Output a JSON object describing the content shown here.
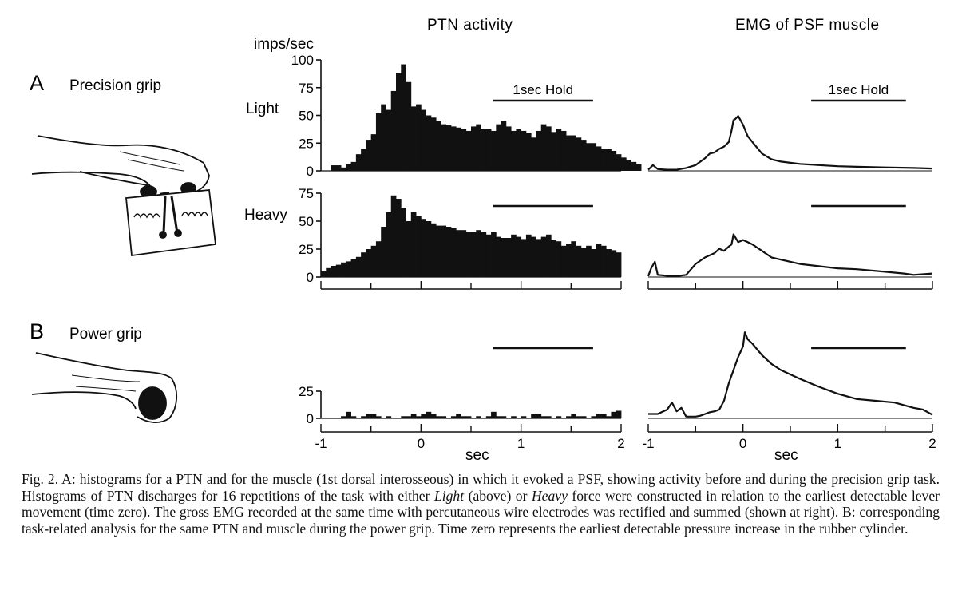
{
  "titles": {
    "left": "PTN activity",
    "right": "EMG of PSF muscle"
  },
  "y_unit": "imps/sec",
  "panels": {
    "a": {
      "letter": "A",
      "label": "Precision grip"
    },
    "b": {
      "letter": "B",
      "label": "Power grip"
    }
  },
  "row_labels": {
    "light": "Light",
    "heavy": "Heavy"
  },
  "hold_label": "1sec Hold",
  "x_label": "sec",
  "chart_data": [
    {
      "type": "bar",
      "panel": "A",
      "condition": "Light",
      "title": "PTN activity",
      "ylabel": "imps/sec",
      "xlabel": "sec",
      "xlim": [
        -1,
        2
      ],
      "ylim": [
        0,
        100
      ],
      "yticks": [
        0,
        25,
        50,
        75,
        100
      ],
      "xticks": [
        -1,
        0,
        1,
        2
      ],
      "hold": {
        "label": "1sec Hold",
        "start": 0.72,
        "end": 1.72
      },
      "bin_width": 0.05,
      "x_start": -0.9,
      "values": [
        5,
        5,
        3,
        6,
        8,
        15,
        20,
        28,
        33,
        52,
        60,
        55,
        72,
        88,
        96,
        80,
        58,
        60,
        55,
        50,
        48,
        45,
        42,
        41,
        40,
        39,
        38,
        36,
        40,
        42,
        38,
        38,
        36,
        42,
        45,
        40,
        36,
        38,
        36,
        34,
        30,
        36,
        42,
        40,
        35,
        38,
        36,
        32,
        32,
        30,
        28,
        25,
        25,
        22,
        20,
        20,
        18,
        15,
        12,
        10,
        8,
        6
      ]
    },
    {
      "type": "bar",
      "panel": "A",
      "condition": "Heavy",
      "ylabel": "imps/sec",
      "xlabel": "sec",
      "xlim": [
        -1,
        2
      ],
      "ylim": [
        0,
        75
      ],
      "yticks": [
        0,
        25,
        50,
        75
      ],
      "xticks": [
        -1,
        0,
        1,
        2
      ],
      "hold": {
        "start": 0.72,
        "end": 1.72
      },
      "bin_width": 0.05,
      "x_start": -1.0,
      "values": [
        5,
        8,
        10,
        11,
        13,
        14,
        16,
        18,
        22,
        25,
        28,
        32,
        45,
        58,
        73,
        70,
        62,
        50,
        58,
        55,
        52,
        50,
        48,
        46,
        46,
        45,
        44,
        42,
        42,
        40,
        40,
        42,
        40,
        38,
        40,
        36,
        35,
        35,
        38,
        36,
        34,
        38,
        36,
        34,
        36,
        38,
        33,
        32,
        28,
        30,
        32,
        28,
        26,
        28,
        25,
        30,
        28,
        25,
        24,
        22
      ]
    },
    {
      "type": "bar",
      "panel": "B",
      "condition": "Power grip",
      "ylabel": "imps/sec",
      "xlabel": "sec",
      "xlim": [
        -1,
        2
      ],
      "ylim": [
        0,
        25
      ],
      "yticks": [
        0,
        25
      ],
      "xticks": [
        -1,
        0,
        1,
        2
      ],
      "hold": {
        "start": 0.72,
        "end": 1.72
      },
      "bin_width": 0.05,
      "x_start": -1.0,
      "values": [
        0,
        0,
        0,
        0,
        2,
        6,
        2,
        0,
        2,
        4,
        4,
        2,
        0,
        2,
        0,
        0,
        2,
        2,
        4,
        2,
        4,
        6,
        4,
        2,
        2,
        0,
        2,
        4,
        2,
        2,
        0,
        2,
        0,
        2,
        6,
        2,
        2,
        0,
        2,
        0,
        2,
        0,
        4,
        4,
        2,
        2,
        0,
        2,
        0,
        2,
        4,
        2,
        2,
        0,
        2,
        4,
        4,
        2,
        6,
        7
      ]
    },
    {
      "type": "line",
      "panel": "A",
      "condition": "Light",
      "title": "EMG of PSF muscle",
      "xlabel": "sec",
      "xlim": [
        -1,
        2
      ],
      "xticks": [
        -1,
        0,
        1,
        2
      ],
      "hold": {
        "label": "1sec Hold",
        "start": 0.72,
        "end": 1.72
      },
      "peak_normalized": true,
      "x": [
        -1.0,
        -0.95,
        -0.9,
        -0.8,
        -0.7,
        -0.6,
        -0.5,
        -0.4,
        -0.35,
        -0.3,
        -0.25,
        -0.2,
        -0.15,
        -0.12,
        -0.1,
        -0.08,
        -0.05,
        0.0,
        0.05,
        0.1,
        0.2,
        0.3,
        0.4,
        0.5,
        0.6,
        0.8,
        1.0,
        1.2,
        1.5,
        1.8,
        2.0
      ],
      "values": [
        0.02,
        0.1,
        0.03,
        0.02,
        0.02,
        0.05,
        0.1,
        0.22,
        0.3,
        0.32,
        0.38,
        0.42,
        0.5,
        0.7,
        0.88,
        0.9,
        0.95,
        0.8,
        0.6,
        0.5,
        0.3,
        0.2,
        0.16,
        0.14,
        0.12,
        0.1,
        0.08,
        0.07,
        0.06,
        0.05,
        0.04
      ]
    },
    {
      "type": "line",
      "panel": "A",
      "condition": "Heavy",
      "xlabel": "sec",
      "xlim": [
        -1,
        2
      ],
      "xticks": [
        -1,
        0,
        1,
        2
      ],
      "hold": {
        "start": 0.72,
        "end": 1.72
      },
      "peak_normalized": true,
      "x": [
        -1.0,
        -0.97,
        -0.93,
        -0.9,
        -0.8,
        -0.7,
        -0.6,
        -0.5,
        -0.4,
        -0.3,
        -0.25,
        -0.2,
        -0.15,
        -0.12,
        -0.1,
        -0.05,
        0.0,
        0.05,
        0.1,
        0.2,
        0.3,
        0.4,
        0.6,
        0.8,
        1.0,
        1.2,
        1.5,
        1.7,
        1.8,
        2.0
      ],
      "values": [
        0.02,
        0.2,
        0.35,
        0.05,
        0.03,
        0.02,
        0.05,
        0.3,
        0.45,
        0.55,
        0.65,
        0.6,
        0.7,
        0.75,
        0.98,
        0.8,
        0.85,
        0.8,
        0.75,
        0.6,
        0.45,
        0.4,
        0.3,
        0.25,
        0.2,
        0.18,
        0.12,
        0.08,
        0.05,
        0.08
      ]
    },
    {
      "type": "line",
      "panel": "B",
      "condition": "Power grip",
      "xlabel": "sec",
      "xlim": [
        -1,
        2
      ],
      "xticks": [
        -1,
        0,
        1,
        2
      ],
      "hold": {
        "start": 0.72,
        "end": 1.72
      },
      "peak_normalized": true,
      "x": [
        -1.0,
        -0.9,
        -0.8,
        -0.75,
        -0.7,
        -0.65,
        -0.6,
        -0.5,
        -0.45,
        -0.4,
        -0.35,
        -0.3,
        -0.25,
        -0.2,
        -0.15,
        -0.1,
        -0.05,
        0.0,
        0.02,
        0.05,
        0.1,
        0.2,
        0.3,
        0.4,
        0.5,
        0.6,
        0.8,
        1.0,
        1.2,
        1.4,
        1.6,
        1.8,
        1.9,
        2.0
      ],
      "values": [
        0.05,
        0.05,
        0.1,
        0.18,
        0.08,
        0.12,
        0.02,
        0.02,
        0.03,
        0.05,
        0.07,
        0.08,
        0.1,
        0.2,
        0.4,
        0.55,
        0.7,
        0.82,
        0.98,
        0.9,
        0.85,
        0.72,
        0.62,
        0.55,
        0.5,
        0.45,
        0.36,
        0.28,
        0.22,
        0.2,
        0.18,
        0.12,
        0.1,
        0.04
      ]
    }
  ],
  "caption": {
    "p1": "Fig. 2. A: histograms for a PTN and for the muscle (1st dorsal interosseous) in which it evoked a PSF, showing activity before and during the precision grip task. Histograms of PTN discharges for 16 repetitions of the task with either ",
    "light": "Light",
    "p2": " (above) or ",
    "heavy": "Heavy",
    "p3": " force were constructed in relation to the earliest detectable lever movement (time zero). The gross EMG recorded at the same time with percutaneous wire electrodes was rectified and summed (shown at right). B: corresponding task-related analysis for the same PTN and muscle during the power grip. Time zero represents the earliest detectable pressure increase in the rubber cylinder."
  }
}
